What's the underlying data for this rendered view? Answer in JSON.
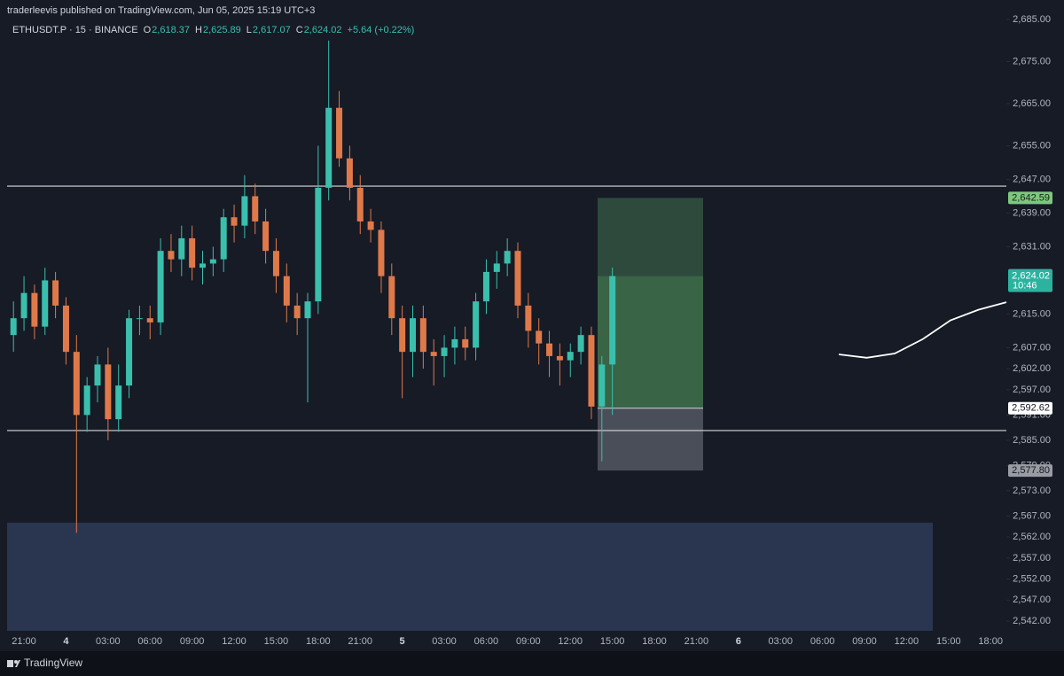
{
  "header": {
    "publisher": "traderleevis published on TradingView.com, Jun 05, 2025 15:19 UTC+3",
    "symbol": "ETHUSDT.P · 15 · BINANCE",
    "ohlc": [
      {
        "key": "O",
        "text": "2,618.37"
      },
      {
        "key": "H",
        "text": "2,625.89"
      },
      {
        "key": "L",
        "text": "2,617.07"
      },
      {
        "key": "C",
        "text": "2,624.02"
      }
    ],
    "change": "+5.64 (+0.22%)"
  },
  "footer": {
    "brand": "TradingView"
  },
  "chart_data": {
    "type": "candlestick",
    "up_color": "#3bbfad",
    "down_color": "#e0794a",
    "open": [
      2610,
      2614,
      2620,
      2612,
      2623,
      2617,
      2606,
      2591,
      2598,
      2603,
      2590,
      2598,
      2614,
      2614,
      2613,
      2630,
      2628,
      2633,
      2626,
      2627,
      2628,
      2638,
      2636,
      2643,
      2637,
      2630,
      2624,
      2617,
      2614,
      2618,
      2645,
      2664,
      2652,
      2645,
      2637,
      2635,
      2624,
      2614,
      2606,
      2614,
      2606,
      2605,
      2607,
      2609,
      2607,
      2618,
      2625,
      2627,
      2630,
      2617,
      2611,
      2608,
      2605,
      2604,
      2606,
      2610,
      2593,
      2603
    ],
    "high": [
      2618,
      2624,
      2622,
      2626,
      2625,
      2619,
      2610,
      2600,
      2605,
      2607,
      2603,
      2616,
      2617,
      2617,
      2633,
      2634,
      2636,
      2636,
      2630,
      2631,
      2640,
      2641,
      2648,
      2646,
      2640,
      2633,
      2627,
      2620,
      2620,
      2655,
      2680,
      2668,
      2655,
      2648,
      2640,
      2637,
      2627,
      2617,
      2617,
      2617,
      2609,
      2610,
      2612,
      2612,
      2620,
      2628,
      2630,
      2633,
      2632,
      2620,
      2614,
      2611,
      2608,
      2608,
      2612,
      2612,
      2605,
      2626
    ],
    "low": [
      2606,
      2611,
      2609,
      2610,
      2614,
      2603,
      2563,
      2587,
      2594,
      2585,
      2587,
      2595,
      2610,
      2609,
      2610,
      2625,
      2624,
      2623,
      2622,
      2624,
      2625,
      2632,
      2633,
      2634,
      2627,
      2620,
      2613,
      2610,
      2594,
      2615,
      2642,
      2650,
      2642,
      2634,
      2632,
      2620,
      2610,
      2595,
      2600,
      2602,
      2598,
      2600,
      2603,
      2604,
      2604,
      2615,
      2621,
      2624,
      2614,
      2607,
      2603,
      2600,
      2598,
      2600,
      2603,
      2590,
      2580,
      2591
    ],
    "close": [
      2614,
      2620,
      2612,
      2623,
      2617,
      2606,
      2591,
      2598,
      2603,
      2590,
      2598,
      2614,
      2614,
      2613,
      2630,
      2628,
      2633,
      2626,
      2627,
      2628,
      2638,
      2636,
      2643,
      2637,
      2630,
      2624,
      2617,
      2614,
      2618,
      2645,
      2664,
      2652,
      2645,
      2637,
      2635,
      2624,
      2614,
      2606,
      2614,
      2606,
      2605,
      2607,
      2609,
      2607,
      2618,
      2625,
      2627,
      2630,
      2617,
      2611,
      2608,
      2605,
      2604,
      2606,
      2610,
      2593,
      2603,
      2624.02
    ],
    "time_labels": [
      "21:00",
      "4",
      "03:00",
      "06:00",
      "09:00",
      "12:00",
      "15:00",
      "18:00",
      "21:00",
      "5",
      "03:00",
      "06:00",
      "09:00",
      "12:00",
      "15:00",
      "18:00",
      "21:00",
      "6",
      "03:00",
      "06:00",
      "09:00",
      "12:00",
      "15:00",
      "18:00"
    ],
    "ylim": [
      2539.7,
      2685
    ],
    "yticks": [
      {
        "value": 2685,
        "label": "2,685.00"
      },
      {
        "value": 2675,
        "label": "2,675.00"
      },
      {
        "value": 2665,
        "label": "2,665.00"
      },
      {
        "value": 2655,
        "label": "2,655.00"
      },
      {
        "value": 2647,
        "label": "2,647.00"
      },
      {
        "value": 2639,
        "label": "2,639.00"
      },
      {
        "value": 2631,
        "label": "2,631.00"
      },
      {
        "value": 2615,
        "label": "2,615.00"
      },
      {
        "value": 2607,
        "label": "2,607.00"
      },
      {
        "value": 2602,
        "label": "2,602.00"
      },
      {
        "value": 2597,
        "label": "2,597.00"
      },
      {
        "value": 2591,
        "label": "2,591.00"
      },
      {
        "value": 2585,
        "label": "2,585.00"
      },
      {
        "value": 2579,
        "label": "2,579.00"
      },
      {
        "value": 2573,
        "label": "2,573.00"
      },
      {
        "value": 2567,
        "label": "2,567.00"
      },
      {
        "value": 2562,
        "label": "2,562.00"
      },
      {
        "value": 2557,
        "label": "2,557.00"
      },
      {
        "value": 2552,
        "label": "2,552.00"
      },
      {
        "value": 2547,
        "label": "2,547.00"
      },
      {
        "value": 2542,
        "label": "2,542.00"
      }
    ],
    "levels": [
      2645.4,
      2587.3
    ],
    "zone": {
      "top": 2565.4,
      "bottom": 2539.7
    },
    "projection": [
      2605.4,
      2604.6,
      2605.6,
      2609,
      2613.5,
      2616,
      2617.8
    ],
    "position": {
      "target": {
        "value": 2642.59,
        "label": "2,642.59"
      },
      "entry": {
        "value": 2592.62,
        "label": "2,592.62"
      },
      "stop": {
        "value": 2577.8,
        "label": "2,577.80"
      }
    },
    "last_price": {
      "value": 2624.02,
      "label": "2,624.02",
      "countdown": "10:46"
    }
  }
}
